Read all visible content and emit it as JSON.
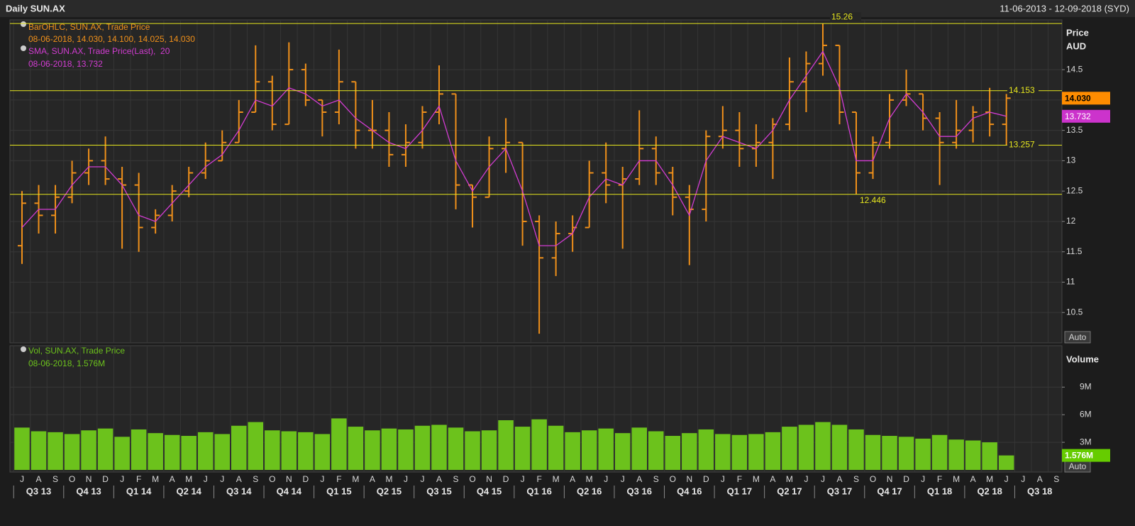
{
  "header": {
    "title": "Daily SUN.AX",
    "range": "11-06-2013 - 12-09-2018 (SYD)"
  },
  "chart_data": [
    {
      "type": "ohlc",
      "ylabel": "Price",
      "yunit": "AUD",
      "auto": "Auto",
      "ylim": [
        10,
        15.32
      ],
      "yticks": [
        10.5,
        11,
        11.5,
        12,
        12.5,
        13,
        13.5,
        14,
        14.5
      ],
      "grid": true,
      "levels": [
        15.26,
        14.153,
        13.257,
        12.446
      ],
      "level_color": "#e6e61e",
      "series": [
        {
          "name": "BarOHLC, SUN.AX, Trade Price",
          "info": "08-06-2018, 14.030, 14.100, 14.025, 14.030",
          "color": "#f0901a",
          "open": [
            11.6,
            12.3,
            12.1,
            12.4,
            12.8,
            13.0,
            12.7,
            12.6,
            11.9,
            12.1,
            12.5,
            12.8,
            13.0,
            13.3,
            13.8,
            14.3,
            13.6,
            14.5,
            14.0,
            13.8,
            14.3,
            13.5,
            13.5,
            13.1,
            13.3,
            13.8,
            14.1,
            12.6,
            12.4,
            13.2,
            13.3,
            12.0,
            11.4,
            11.8,
            11.9,
            12.8,
            12.6,
            12.7,
            13.2,
            12.8,
            12.4,
            12.2,
            13.4,
            13.5,
            13.2,
            13.3,
            13.6,
            14.3,
            14.6,
            14.9,
            13.8,
            12.8,
            13.3,
            14.0,
            14.1,
            13.7,
            13.3,
            13.5,
            13.8,
            13.6,
            null,
            null,
            null
          ],
          "high": [
            12.5,
            12.6,
            12.6,
            13.0,
            13.2,
            13.4,
            12.9,
            12.8,
            12.2,
            12.6,
            12.9,
            13.3,
            13.5,
            14.0,
            14.9,
            14.4,
            14.95,
            14.6,
            14.0,
            14.83,
            14.3,
            14.0,
            13.8,
            13.6,
            13.9,
            14.57,
            14.1,
            12.6,
            13.4,
            13.7,
            13.3,
            12.1,
            12.0,
            12.1,
            13.0,
            13.3,
            12.9,
            13.83,
            13.4,
            12.9,
            12.6,
            13.5,
            13.9,
            13.8,
            13.6,
            13.7,
            14.7,
            14.8,
            15.26,
            14.9,
            13.8,
            13.4,
            14.1,
            14.5,
            14.1,
            13.8,
            14.0,
            13.9,
            14.2,
            14.1,
            null,
            null,
            null
          ],
          "low": [
            11.3,
            11.8,
            11.8,
            12.3,
            12.6,
            12.6,
            11.55,
            11.5,
            11.8,
            12.0,
            12.4,
            12.7,
            13.0,
            13.3,
            13.8,
            13.5,
            13.6,
            13.9,
            13.4,
            13.6,
            13.2,
            13.2,
            12.9,
            12.9,
            13.2,
            13.6,
            12.2,
            11.9,
            12.4,
            12.8,
            11.6,
            10.15,
            11.1,
            11.5,
            11.9,
            12.3,
            11.55,
            12.6,
            12.6,
            12.1,
            11.28,
            12.0,
            13.2,
            12.9,
            12.9,
            12.7,
            13.5,
            13.8,
            14.4,
            13.6,
            12.446,
            12.7,
            13.2,
            13.9,
            13.5,
            12.6,
            13.2,
            13.3,
            13.4,
            13.257,
            null,
            null,
            null
          ],
          "close": [
            12.3,
            12.1,
            12.4,
            12.8,
            13.0,
            12.7,
            12.6,
            11.9,
            12.1,
            12.5,
            12.8,
            13.0,
            13.3,
            13.8,
            14.3,
            13.6,
            14.5,
            14.0,
            13.8,
            14.3,
            13.5,
            13.5,
            13.1,
            13.3,
            13.8,
            14.1,
            12.6,
            12.4,
            13.2,
            13.3,
            12.0,
            11.4,
            11.8,
            11.9,
            12.8,
            12.6,
            12.7,
            13.2,
            12.8,
            12.4,
            12.2,
            13.4,
            13.5,
            13.2,
            13.3,
            13.6,
            14.3,
            14.6,
            14.9,
            13.8,
            12.8,
            13.3,
            14.0,
            14.1,
            13.7,
            13.3,
            13.5,
            13.8,
            13.6,
            14.03,
            null,
            null,
            null
          ]
        },
        {
          "name": "SMA, SUN.AX, Trade Price(Last),  20",
          "info": "08-06-2018, 13.732",
          "color": "#d23cd2",
          "values": [
            11.9,
            12.2,
            12.2,
            12.6,
            12.9,
            12.9,
            12.6,
            12.1,
            12.0,
            12.3,
            12.6,
            12.9,
            13.1,
            13.5,
            14.0,
            13.9,
            14.2,
            14.1,
            13.9,
            14.0,
            13.7,
            13.5,
            13.3,
            13.2,
            13.5,
            13.9,
            13.0,
            12.5,
            12.9,
            13.2,
            12.5,
            11.6,
            11.6,
            11.8,
            12.4,
            12.7,
            12.6,
            13.0,
            13.0,
            12.6,
            12.1,
            13.0,
            13.4,
            13.3,
            13.2,
            13.5,
            14.0,
            14.4,
            14.8,
            14.2,
            13.0,
            13.0,
            13.7,
            14.1,
            13.8,
            13.4,
            13.4,
            13.7,
            13.8,
            13.732,
            null,
            null,
            null
          ]
        }
      ],
      "price_tags": [
        {
          "value": 14.03,
          "label": "14.030",
          "color": "#ff8c00"
        },
        {
          "value": 13.732,
          "label": "13.732",
          "color": "#cc33cc"
        }
      ]
    },
    {
      "type": "bar",
      "ylabel": "Volume",
      "auto": "Auto",
      "ylim": [
        0,
        13500000
      ],
      "yticks": [
        {
          "value": 3000000,
          "label": "3M"
        },
        {
          "value": 6000000,
          "label": "6M"
        },
        {
          "value": 9000000,
          "label": "9M"
        }
      ],
      "grid": true,
      "categories": [
        "J",
        "A",
        "S",
        "O",
        "N",
        "D",
        "J",
        "F",
        "M",
        "A",
        "M",
        "J",
        "J",
        "A",
        "S",
        "O",
        "N",
        "D",
        "J",
        "F",
        "M",
        "A",
        "M",
        "J",
        "J",
        "A",
        "S",
        "O",
        "N",
        "D",
        "J",
        "F",
        "M",
        "A",
        "M",
        "J",
        "J",
        "A",
        "S",
        "O",
        "N",
        "D",
        "J",
        "F",
        "M",
        "A",
        "M",
        "J",
        "J",
        "A",
        "S",
        "O",
        "N",
        "D",
        "J",
        "F",
        "M",
        "A",
        "M",
        "J",
        "J",
        "A",
        "S"
      ],
      "quarters": [
        "Q3 13",
        "Q4 13",
        "Q1 14",
        "Q2 14",
        "Q3 14",
        "Q4 14",
        "Q1 15",
        "Q2 15",
        "Q3 15",
        "Q4 15",
        "Q1 16",
        "Q2 16",
        "Q3 16",
        "Q4 16",
        "Q1 17",
        "Q2 17",
        "Q3 17",
        "Q4 17",
        "Q1 18",
        "Q2 18",
        "Q3 18"
      ],
      "series": [
        {
          "name": "Vol, SUN.AX, Trade Price",
          "info": "08-06-2018, 1.576M",
          "color": "#6cc21c",
          "values": [
            4600000,
            4200000,
            4100000,
            3900000,
            4300000,
            4500000,
            3600000,
            4400000,
            4000000,
            3800000,
            3700000,
            4100000,
            3900000,
            4800000,
            5200000,
            4300000,
            4200000,
            4100000,
            3900000,
            5600000,
            4700000,
            4300000,
            4500000,
            4400000,
            4800000,
            4900000,
            4600000,
            4200000,
            4300000,
            5400000,
            4700000,
            5500000,
            4800000,
            4100000,
            4300000,
            4500000,
            4000000,
            4600000,
            4200000,
            3700000,
            4000000,
            4400000,
            3900000,
            3800000,
            3900000,
            4100000,
            4700000,
            4900000,
            5200000,
            4900000,
            4400000,
            3800000,
            3700000,
            3600000,
            3400000,
            3800000,
            3300000,
            3200000,
            3000000,
            1576000,
            null,
            null,
            null
          ]
        }
      ],
      "volume_tag": {
        "value": 1576000,
        "label": "1.576M",
        "color": "#66cc00"
      }
    }
  ]
}
